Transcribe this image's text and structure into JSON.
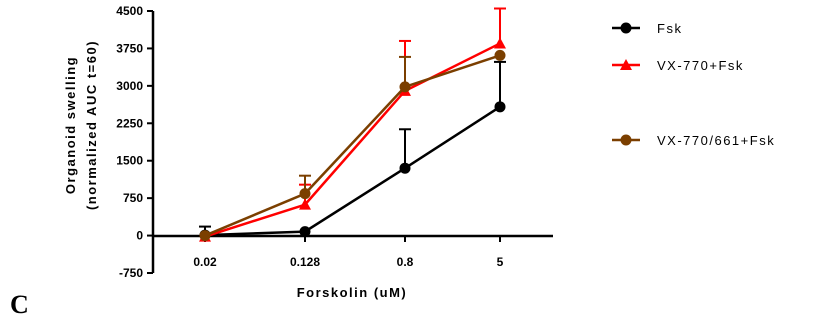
{
  "chart_data": {
    "type": "line",
    "categories": [
      "0.02",
      "0.128",
      "0.8",
      "5"
    ],
    "xlabel": "Forskolin (uM)",
    "ylabel_lines": [
      "Organoid swelling",
      "(normalized AUC t=60)"
    ],
    "ylim": [
      -750,
      4500
    ],
    "yticks": [
      -750,
      0,
      750,
      1500,
      2250,
      3000,
      3750,
      4500
    ],
    "ytick_labels": [
      "-750",
      "0",
      "750",
      "1500",
      "2250",
      "3000",
      "3750",
      "4500"
    ],
    "legend_position": "right",
    "series": [
      {
        "name": "Fsk",
        "marker": "circle",
        "color": "#000000",
        "errorbar": "up",
        "values": [
          10,
          80,
          1350,
          2580
        ],
        "errors": [
          170,
          0,
          780,
          900
        ]
      },
      {
        "name": "VX-770+Fsk",
        "marker": "triangle",
        "color": "#ff0000",
        "errorbar": "up",
        "values": [
          -20,
          620,
          2900,
          3850
        ],
        "errors": [
          0,
          400,
          1000,
          700
        ]
      },
      {
        "name": "VX-770/661+Fsk",
        "marker": "circle",
        "color": "#7b3f00",
        "errorbar": "up",
        "values": [
          0,
          840,
          2980,
          3610
        ],
        "errors": [
          0,
          360,
          600,
          0
        ]
      }
    ]
  },
  "panel_label": "C"
}
